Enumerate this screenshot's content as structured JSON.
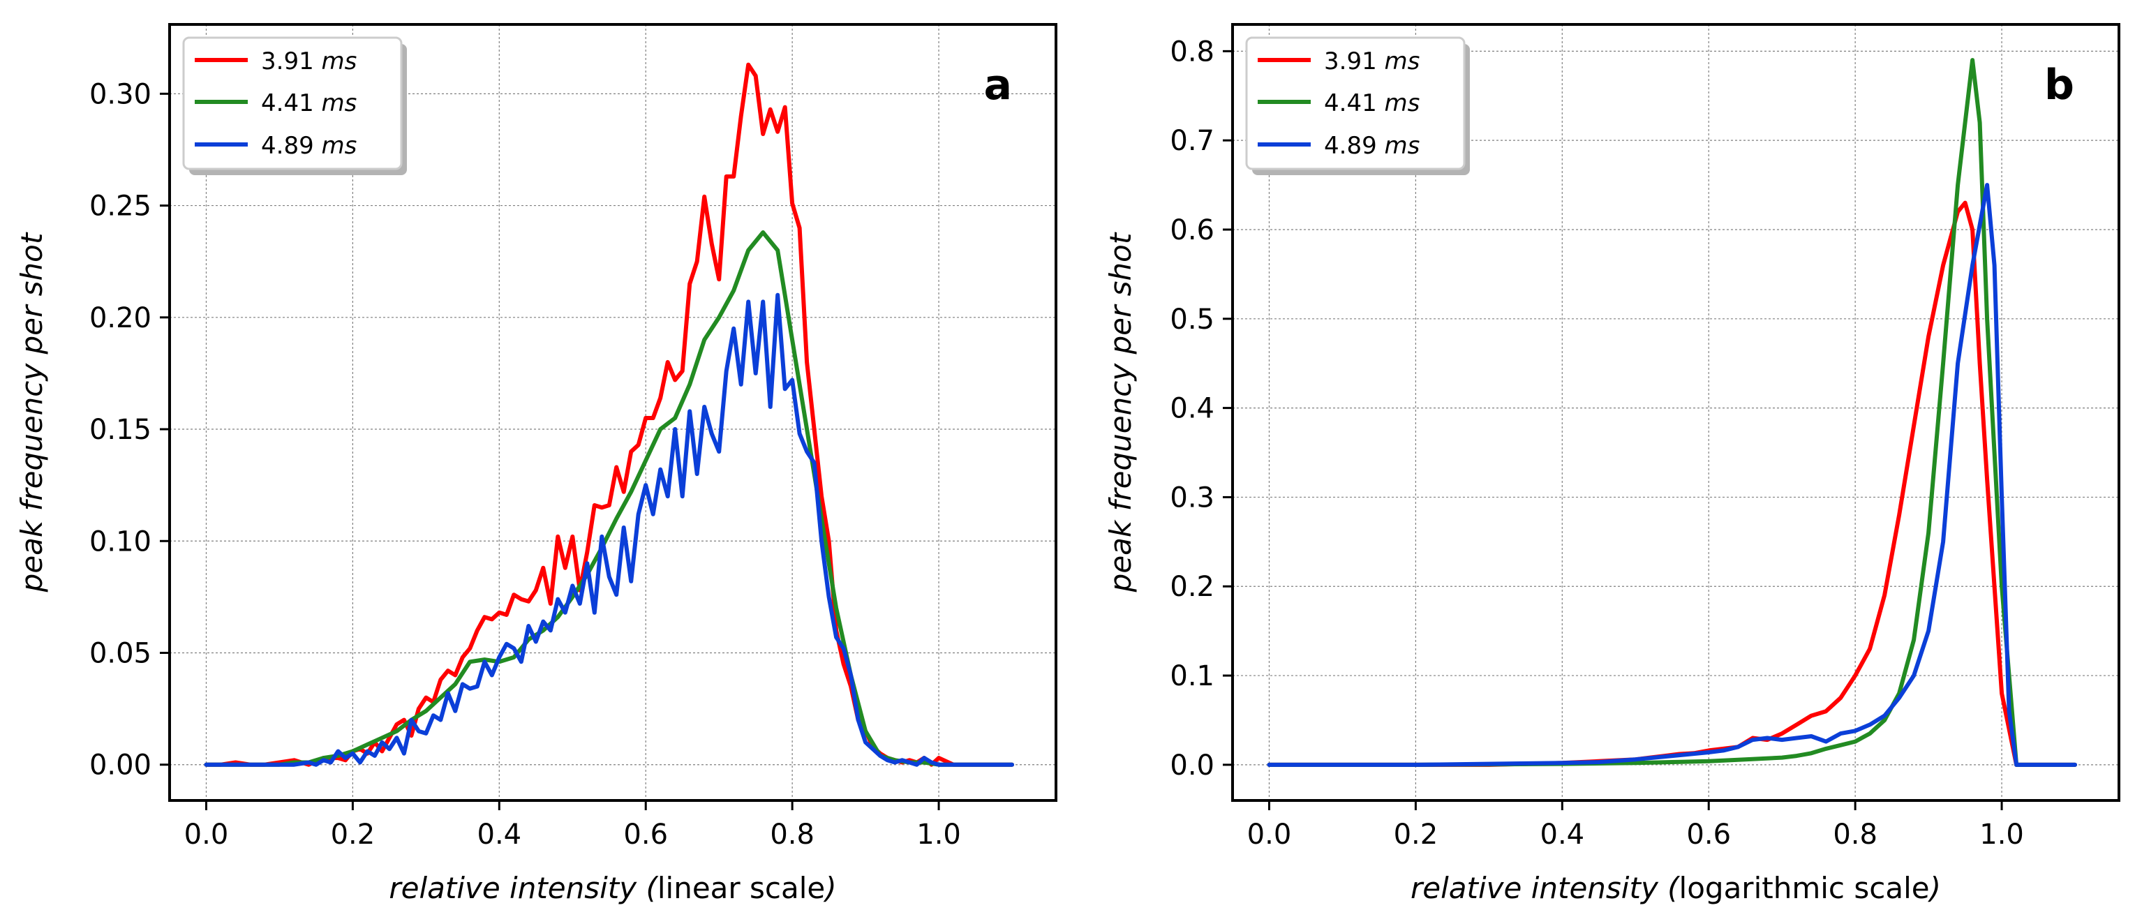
{
  "chart_data": [
    {
      "panel": "a",
      "type": "line",
      "xlabel_parts": [
        "relative intensity (",
        "linear scale",
        ")"
      ],
      "ylabel": "peak frequency per shot",
      "xlim": [
        -0.05,
        1.16
      ],
      "ylim": [
        -0.016,
        0.331
      ],
      "xticks": [
        0.0,
        0.2,
        0.4,
        0.6,
        0.8,
        1.0
      ],
      "xtick_labels": [
        "0.0",
        "0.2",
        "0.4",
        "0.6",
        "0.8",
        "1.0"
      ],
      "yticks": [
        0.0,
        0.05,
        0.1,
        0.15,
        0.2,
        0.25,
        0.3
      ],
      "ytick_labels": [
        "0.00",
        "0.05",
        "0.10",
        "0.15",
        "0.20",
        "0.25",
        "0.30"
      ],
      "grid": true,
      "legend_position": "top-left",
      "series": [
        {
          "name": "3.91",
          "unit": "ms",
          "color": "#ff0000",
          "x": [
            0.0,
            0.02,
            0.04,
            0.06,
            0.08,
            0.1,
            0.12,
            0.14,
            0.16,
            0.18,
            0.19,
            0.2,
            0.21,
            0.22,
            0.23,
            0.24,
            0.25,
            0.26,
            0.27,
            0.28,
            0.29,
            0.3,
            0.31,
            0.32,
            0.33,
            0.34,
            0.35,
            0.36,
            0.37,
            0.38,
            0.39,
            0.4,
            0.41,
            0.42,
            0.43,
            0.44,
            0.45,
            0.46,
            0.47,
            0.48,
            0.49,
            0.5,
            0.51,
            0.52,
            0.53,
            0.54,
            0.55,
            0.56,
            0.57,
            0.58,
            0.59,
            0.6,
            0.61,
            0.62,
            0.63,
            0.64,
            0.65,
            0.66,
            0.67,
            0.68,
            0.69,
            0.7,
            0.71,
            0.72,
            0.73,
            0.74,
            0.75,
            0.76,
            0.77,
            0.78,
            0.79,
            0.8,
            0.81,
            0.82,
            0.83,
            0.84,
            0.85,
            0.86,
            0.87,
            0.88,
            0.89,
            0.9,
            0.91,
            0.92,
            0.93,
            0.94,
            0.95,
            0.96,
            0.97,
            0.98,
            0.99,
            1.0,
            1.02,
            1.05,
            1.1
          ],
          "y": [
            0,
            0,
            0.001,
            0,
            0,
            0.001,
            0.002,
            0,
            0.003,
            0.003,
            0.002,
            0.006,
            0.007,
            0.005,
            0.01,
            0.006,
            0.012,
            0.018,
            0.02,
            0.013,
            0.025,
            0.03,
            0.028,
            0.038,
            0.042,
            0.04,
            0.048,
            0.052,
            0.06,
            0.066,
            0.065,
            0.068,
            0.067,
            0.076,
            0.074,
            0.073,
            0.078,
            0.088,
            0.072,
            0.102,
            0.088,
            0.102,
            0.078,
            0.095,
            0.116,
            0.115,
            0.116,
            0.133,
            0.122,
            0.14,
            0.143,
            0.155,
            0.155,
            0.164,
            0.18,
            0.172,
            0.176,
            0.215,
            0.225,
            0.254,
            0.233,
            0.217,
            0.263,
            0.263,
            0.29,
            0.313,
            0.308,
            0.282,
            0.293,
            0.283,
            0.294,
            0.251,
            0.24,
            0.18,
            0.15,
            0.12,
            0.1,
            0.06,
            0.045,
            0.035,
            0.02,
            0.015,
            0.008,
            0.005,
            0.003,
            0.002,
            0.001,
            0.002,
            0.001,
            0.003,
            0,
            0.003,
            0,
            0,
            0
          ]
        },
        {
          "name": "4.41",
          "unit": "ms",
          "color": "#228b22",
          "x": [
            0.0,
            0.02,
            0.04,
            0.06,
            0.08,
            0.1,
            0.12,
            0.14,
            0.16,
            0.18,
            0.2,
            0.22,
            0.24,
            0.26,
            0.28,
            0.3,
            0.32,
            0.34,
            0.36,
            0.38,
            0.4,
            0.42,
            0.44,
            0.46,
            0.48,
            0.5,
            0.52,
            0.54,
            0.56,
            0.58,
            0.6,
            0.62,
            0.64,
            0.66,
            0.68,
            0.7,
            0.72,
            0.74,
            0.76,
            0.78,
            0.8,
            0.82,
            0.84,
            0.86,
            0.88,
            0.9,
            0.92,
            0.94,
            0.96,
            0.98,
            1.0,
            1.02,
            1.05,
            1.1
          ],
          "y": [
            0,
            0,
            0,
            0,
            0,
            0,
            0.001,
            0.001,
            0.003,
            0.004,
            0.006,
            0.009,
            0.012,
            0.015,
            0.02,
            0.024,
            0.03,
            0.036,
            0.046,
            0.047,
            0.046,
            0.048,
            0.056,
            0.06,
            0.066,
            0.075,
            0.085,
            0.097,
            0.11,
            0.122,
            0.136,
            0.15,
            0.155,
            0.17,
            0.19,
            0.2,
            0.212,
            0.23,
            0.238,
            0.23,
            0.19,
            0.15,
            0.11,
            0.07,
            0.04,
            0.015,
            0.004,
            0.002,
            0.001,
            0.001,
            0,
            0,
            0,
            0
          ]
        },
        {
          "name": "4.89",
          "unit": "ms",
          "color": "#0b3fd8",
          "x": [
            0.0,
            0.02,
            0.04,
            0.06,
            0.08,
            0.1,
            0.12,
            0.14,
            0.15,
            0.16,
            0.17,
            0.18,
            0.19,
            0.2,
            0.21,
            0.22,
            0.23,
            0.24,
            0.25,
            0.26,
            0.27,
            0.28,
            0.29,
            0.3,
            0.31,
            0.32,
            0.33,
            0.34,
            0.35,
            0.36,
            0.37,
            0.38,
            0.39,
            0.4,
            0.41,
            0.42,
            0.43,
            0.44,
            0.45,
            0.46,
            0.47,
            0.48,
            0.49,
            0.5,
            0.51,
            0.52,
            0.53,
            0.54,
            0.55,
            0.56,
            0.57,
            0.58,
            0.59,
            0.6,
            0.61,
            0.62,
            0.63,
            0.64,
            0.65,
            0.66,
            0.67,
            0.68,
            0.69,
            0.7,
            0.71,
            0.72,
            0.73,
            0.74,
            0.75,
            0.76,
            0.77,
            0.78,
            0.79,
            0.8,
            0.81,
            0.82,
            0.83,
            0.84,
            0.85,
            0.86,
            0.87,
            0.88,
            0.89,
            0.9,
            0.91,
            0.92,
            0.93,
            0.94,
            0.95,
            0.96,
            0.97,
            0.98,
            0.99,
            1.0,
            1.02,
            1.05,
            1.1
          ],
          "y": [
            0,
            0,
            0,
            0,
            0,
            0,
            0,
            0.001,
            0,
            0.002,
            0.001,
            0.006,
            0.003,
            0.005,
            0.001,
            0.006,
            0.004,
            0.01,
            0.007,
            0.012,
            0.005,
            0.02,
            0.015,
            0.014,
            0.022,
            0.02,
            0.032,
            0.024,
            0.036,
            0.034,
            0.035,
            0.046,
            0.04,
            0.048,
            0.054,
            0.052,
            0.046,
            0.062,
            0.055,
            0.064,
            0.06,
            0.074,
            0.068,
            0.08,
            0.072,
            0.09,
            0.068,
            0.102,
            0.084,
            0.076,
            0.106,
            0.082,
            0.112,
            0.125,
            0.112,
            0.132,
            0.12,
            0.15,
            0.12,
            0.158,
            0.13,
            0.16,
            0.148,
            0.14,
            0.176,
            0.195,
            0.17,
            0.207,
            0.175,
            0.207,
            0.16,
            0.21,
            0.168,
            0.172,
            0.148,
            0.14,
            0.135,
            0.1,
            0.075,
            0.057,
            0.052,
            0.04,
            0.02,
            0.01,
            0.007,
            0.004,
            0.002,
            0.001,
            0.002,
            0.001,
            0,
            0.003,
            0.001,
            0,
            0,
            0,
            0
          ]
        }
      ]
    },
    {
      "panel": "b",
      "type": "line",
      "xlabel_parts": [
        "relative intensity (",
        "logarithmic scale",
        ")"
      ],
      "ylabel": "peak frequency per shot",
      "xlim": [
        -0.05,
        1.16
      ],
      "ylim": [
        -0.04,
        0.83
      ],
      "xticks": [
        0.0,
        0.2,
        0.4,
        0.6,
        0.8,
        1.0
      ],
      "xtick_labels": [
        "0.0",
        "0.2",
        "0.4",
        "0.6",
        "0.8",
        "1.0"
      ],
      "yticks": [
        0.0,
        0.1,
        0.2,
        0.3,
        0.4,
        0.5,
        0.6,
        0.7,
        0.8
      ],
      "ytick_labels": [
        "0.0",
        "0.1",
        "0.2",
        "0.3",
        "0.4",
        "0.5",
        "0.6",
        "0.7",
        "0.8"
      ],
      "grid": true,
      "legend_position": "top-left",
      "series": [
        {
          "name": "3.91",
          "unit": "ms",
          "color": "#ff0000",
          "x": [
            0.0,
            0.1,
            0.2,
            0.3,
            0.35,
            0.4,
            0.45,
            0.5,
            0.52,
            0.54,
            0.56,
            0.58,
            0.6,
            0.62,
            0.64,
            0.66,
            0.68,
            0.7,
            0.72,
            0.74,
            0.76,
            0.78,
            0.8,
            0.82,
            0.84,
            0.86,
            0.88,
            0.9,
            0.92,
            0.94,
            0.95,
            0.96,
            0.97,
            0.98,
            1.0,
            1.02,
            1.05,
            1.1
          ],
          "y": [
            0,
            0,
            0,
            0,
            0.001,
            0.002,
            0.004,
            0.006,
            0.008,
            0.01,
            0.012,
            0.013,
            0.016,
            0.018,
            0.02,
            0.03,
            0.028,
            0.035,
            0.045,
            0.055,
            0.06,
            0.075,
            0.1,
            0.13,
            0.19,
            0.28,
            0.38,
            0.48,
            0.56,
            0.62,
            0.63,
            0.6,
            0.45,
            0.32,
            0.08,
            0,
            0,
            0
          ]
        },
        {
          "name": "4.41",
          "unit": "ms",
          "color": "#228b22",
          "x": [
            0.0,
            0.2,
            0.4,
            0.5,
            0.55,
            0.6,
            0.65,
            0.7,
            0.72,
            0.74,
            0.76,
            0.78,
            0.8,
            0.82,
            0.84,
            0.86,
            0.88,
            0.9,
            0.92,
            0.94,
            0.96,
            0.97,
            0.98,
            1.0,
            1.02,
            1.05,
            1.1
          ],
          "y": [
            0,
            0,
            0.001,
            0.002,
            0.003,
            0.004,
            0.006,
            0.008,
            0.01,
            0.013,
            0.018,
            0.022,
            0.026,
            0.035,
            0.05,
            0.08,
            0.14,
            0.26,
            0.45,
            0.65,
            0.79,
            0.72,
            0.5,
            0.2,
            0,
            0,
            0
          ]
        },
        {
          "name": "4.89",
          "unit": "ms",
          "color": "#0b3fd8",
          "x": [
            0.0,
            0.2,
            0.4,
            0.45,
            0.5,
            0.55,
            0.6,
            0.62,
            0.64,
            0.66,
            0.68,
            0.7,
            0.72,
            0.74,
            0.76,
            0.78,
            0.8,
            0.82,
            0.84,
            0.86,
            0.88,
            0.9,
            0.92,
            0.94,
            0.96,
            0.98,
            0.99,
            1.0,
            1.01,
            1.02,
            1.05,
            1.1
          ],
          "y": [
            0,
            0,
            0.002,
            0.003,
            0.006,
            0.01,
            0.014,
            0.016,
            0.02,
            0.028,
            0.03,
            0.028,
            0.03,
            0.032,
            0.026,
            0.035,
            0.038,
            0.045,
            0.055,
            0.075,
            0.1,
            0.15,
            0.25,
            0.45,
            0.56,
            0.65,
            0.56,
            0.3,
            0.06,
            0,
            0,
            0
          ]
        }
      ]
    }
  ]
}
